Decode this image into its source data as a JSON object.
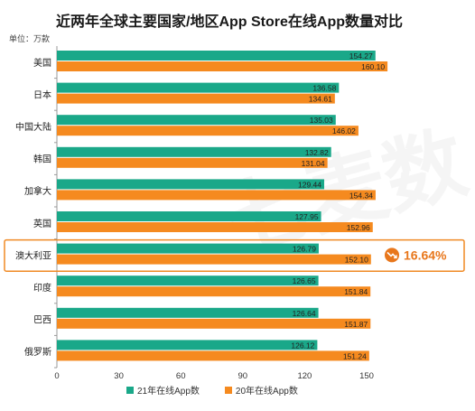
{
  "title": "近两年全球主要国家/地区App Store在线App数量对比",
  "unit_label": "单位：万款",
  "watermark_text": "七麦数",
  "colors": {
    "series_2021": "#1aa889",
    "series_2020": "#f58a1f",
    "highlight_border": "#f08a24",
    "highlight_text": "#e8771c"
  },
  "chart_data": {
    "type": "bar",
    "orientation": "horizontal",
    "categories": [
      "美国",
      "日本",
      "中国大陆",
      "韩国",
      "加拿大",
      "英国",
      "澳大利亚",
      "印度",
      "巴西",
      "俄罗斯"
    ],
    "series": [
      {
        "name": "21年在线App数",
        "values": [
          154.27,
          136.58,
          135.03,
          132.82,
          129.44,
          127.95,
          126.79,
          126.65,
          126.64,
          126.12
        ]
      },
      {
        "name": "20年在线App数",
        "values": [
          160.1,
          134.61,
          146.02,
          131.04,
          154.34,
          152.96,
          152.1,
          151.84,
          151.87,
          151.24
        ]
      }
    ],
    "x_ticks": [
      0,
      30,
      60,
      90,
      120,
      150
    ],
    "xlim": [
      0,
      150
    ],
    "highlight": {
      "category": "澳大利亚",
      "annotation": "16.64%",
      "icon": "down-trend-icon"
    },
    "legend_position": "bottom"
  }
}
